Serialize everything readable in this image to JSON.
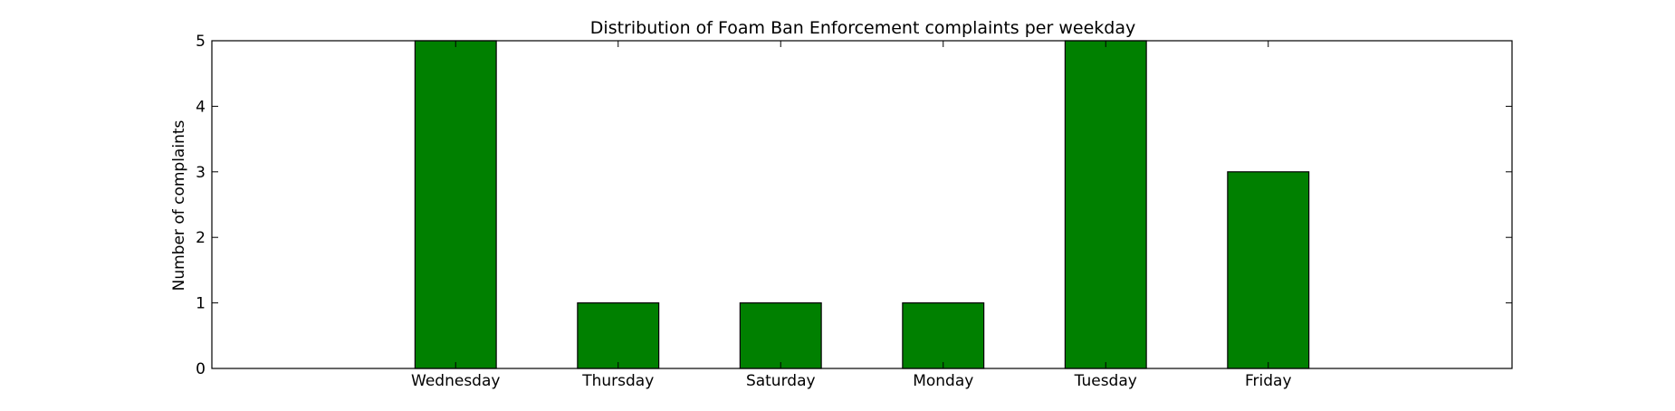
{
  "chart_data": {
    "type": "bar",
    "title": "Distribution of  Foam Ban Enforcement complaints per weekday",
    "xlabel": "",
    "ylabel": "Number of complaints",
    "categories": [
      "Wednesday",
      "Thursday",
      "Saturday",
      "Monday",
      "Tuesday",
      "Friday"
    ],
    "values": [
      5,
      1,
      1,
      1,
      5,
      3
    ],
    "ylim": [
      0,
      5
    ],
    "yticks": [
      "0",
      "1",
      "2",
      "3",
      "4",
      "5"
    ],
    "grid": false,
    "legend": "none",
    "colors": {
      "bar_fill": "#008000",
      "bar_stroke": "#000000",
      "axes": "#000000",
      "background": "#ffffff"
    }
  }
}
